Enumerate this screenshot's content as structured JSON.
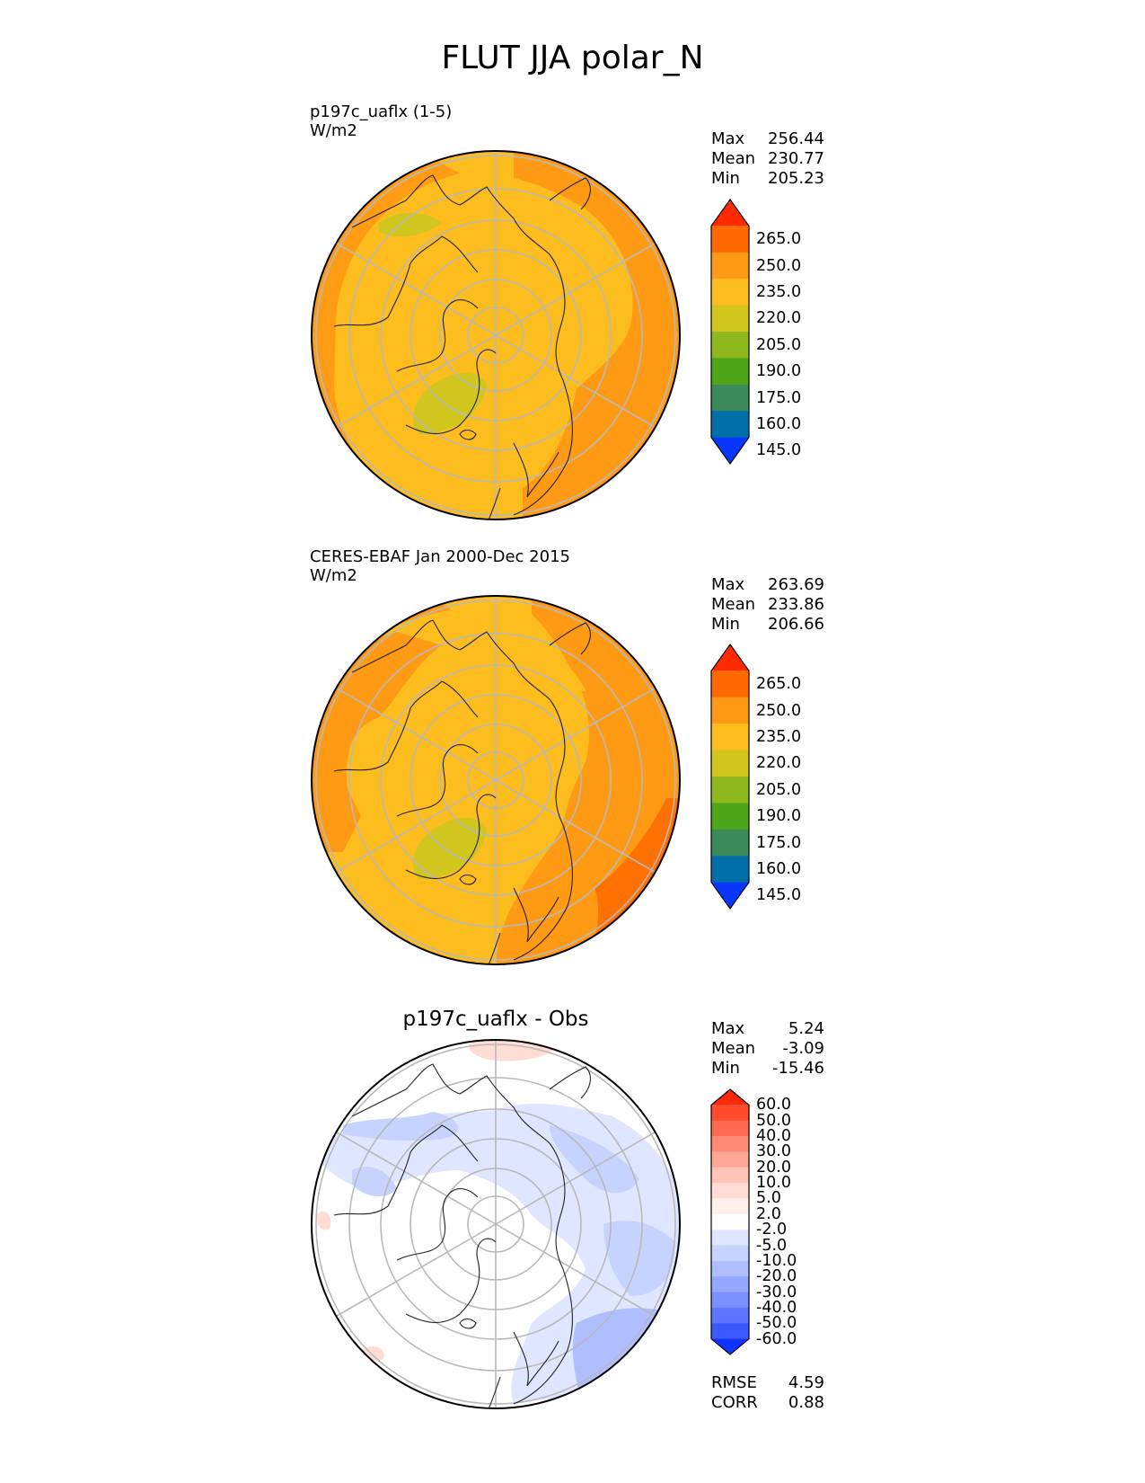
{
  "title": "FLUT JJA polar_N",
  "panels": [
    {
      "id": "test",
      "title_line1": "p197c_uaflx (1-5)",
      "title_line2": "W/m2",
      "stats": [
        {
          "label": "Max",
          "value": "256.44"
        },
        {
          "label": "Mean",
          "value": "230.77"
        },
        {
          "label": "Min",
          "value": "205.23"
        }
      ]
    },
    {
      "id": "ref",
      "title_line1": "CERES-EBAF Jan 2000-Dec 2015",
      "title_line2": "W/m2",
      "stats": [
        {
          "label": "Max",
          "value": "263.69"
        },
        {
          "label": "Mean",
          "value": "233.86"
        },
        {
          "label": "Min",
          "value": "206.66"
        }
      ]
    },
    {
      "id": "diff",
      "title": "p197c_uaflx - Obs",
      "stats": [
        {
          "label": "Max",
          "value": "5.24"
        },
        {
          "label": "Mean",
          "value": "-3.09"
        },
        {
          "label": "Min",
          "value": "-15.46"
        }
      ],
      "extra_stats": [
        {
          "label": "RMSE",
          "value": "4.59"
        },
        {
          "label": "CORR",
          "value": "0.88"
        }
      ]
    }
  ],
  "colorbars": {
    "field": {
      "labels": [
        "265.0",
        "250.0",
        "235.0",
        "220.0",
        "205.0",
        "190.0",
        "175.0",
        "160.0",
        "145.0"
      ],
      "colors": [
        "#ff2a00",
        "#ff6a00",
        "#ff9a14",
        "#fdbd1e",
        "#d0c61e",
        "#8fb81e",
        "#4fa51a",
        "#3a8a5c",
        "#006fa8",
        "#0a37ff"
      ]
    },
    "diff": {
      "labels": [
        "60.0",
        "50.0",
        "40.0",
        "30.0",
        "20.0",
        "10.0",
        "5.0",
        "2.0",
        "-2.0",
        "-5.0",
        "-10.0",
        "-20.0",
        "-30.0",
        "-40.0",
        "-50.0",
        "-60.0"
      ],
      "colors": [
        "#ff2a0a",
        "#ff4b2e",
        "#ff6a52",
        "#ff8a76",
        "#ffa898",
        "#ffc4b8",
        "#ffdcd4",
        "#fff0ec",
        "#ffffff",
        "#dfe6ff",
        "#c7d3ff",
        "#aebeff",
        "#94a8ff",
        "#7a90ff",
        "#5e76ff",
        "#3d58ff",
        "#0f34ff"
      ]
    }
  },
  "chart_data": [
    {
      "type": "heatmap",
      "projection": "north polar stereographic",
      "title": "p197c_uaflx (1-5)",
      "units": "W/m2",
      "stats": {
        "max": 256.44,
        "mean": 230.77,
        "min": 205.23
      },
      "levels": [
        145,
        160,
        175,
        190,
        205,
        220,
        235,
        250,
        265
      ],
      "extend": "both"
    },
    {
      "type": "heatmap",
      "projection": "north polar stereographic",
      "title": "CERES-EBAF Jan 2000-Dec 2015",
      "units": "W/m2",
      "stats": {
        "max": 263.69,
        "mean": 233.86,
        "min": 206.66
      },
      "levels": [
        145,
        160,
        175,
        190,
        205,
        220,
        235,
        250,
        265
      ],
      "extend": "both"
    },
    {
      "type": "heatmap",
      "projection": "north polar stereographic",
      "title": "p197c_uaflx - Obs",
      "stats": {
        "max": 5.24,
        "mean": -3.09,
        "min": -15.46,
        "rmse": 4.59,
        "corr": 0.88
      },
      "levels": [
        -60,
        -50,
        -40,
        -30,
        -20,
        -10,
        -5,
        -2,
        2,
        5,
        10,
        20,
        30,
        40,
        50,
        60
      ],
      "extend": "both"
    }
  ]
}
